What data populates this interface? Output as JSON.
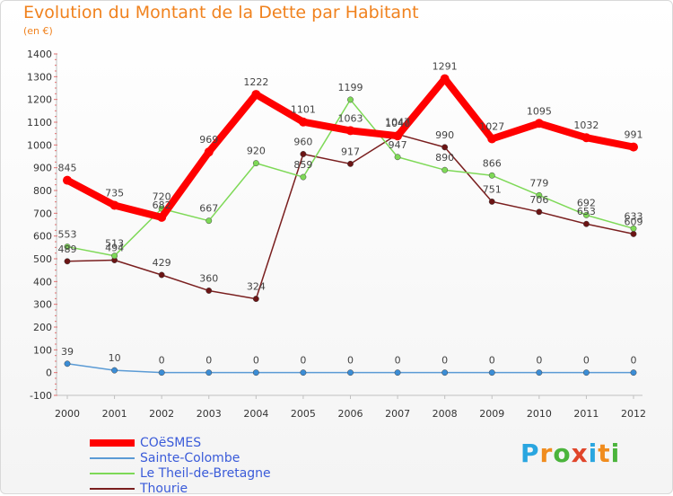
{
  "title": "Evolution du Montant de la Dette par Habitant",
  "subtitle": "(en €)",
  "logo": {
    "text": "Proxiti",
    "colors": [
      "#2aa6e0",
      "#f08c1e",
      "#4bb43c",
      "#e0452a",
      "#2aa6e0",
      "#f08c1e",
      "#4bb43c"
    ]
  },
  "chart_data": {
    "type": "line",
    "title": "Evolution du Montant de la Dette par Habitant",
    "ylabel": "(en €)",
    "xlabel": "",
    "x": [
      "2000",
      "2001",
      "2002",
      "2003",
      "2004",
      "2005",
      "2006",
      "2007",
      "2008",
      "2009",
      "2010",
      "2011",
      "2012"
    ],
    "ylim": [
      -100,
      1400
    ],
    "yticks": [
      -100,
      0,
      100,
      200,
      300,
      400,
      500,
      600,
      700,
      800,
      900,
      1000,
      1100,
      1200,
      1300,
      1400
    ],
    "grid": false,
    "legend_position": "bottom-left",
    "series": [
      {
        "name": "COëSMES",
        "color": "#ff0000",
        "values": [
          845,
          735,
          682,
          969,
          1222,
          1101,
          1063,
          1040,
          1291,
          1027,
          1095,
          1032,
          991
        ]
      },
      {
        "name": "Sainte-Colombe",
        "color": "#5b9bd5",
        "values": [
          39,
          10,
          0,
          0,
          0,
          0,
          0,
          0,
          0,
          0,
          0,
          0,
          0
        ]
      },
      {
        "name": "Le Theil-de-Bretagne",
        "color": "#7ed957",
        "values": [
          553,
          513,
          720,
          667,
          920,
          859,
          1199,
          947,
          890,
          866,
          779,
          692,
          633
        ]
      },
      {
        "name": "Thourie",
        "color": "#7a1f1f",
        "values": [
          489,
          494,
          429,
          360,
          324,
          960,
          917,
          1047,
          990,
          751,
          706,
          653,
          609
        ]
      }
    ]
  }
}
